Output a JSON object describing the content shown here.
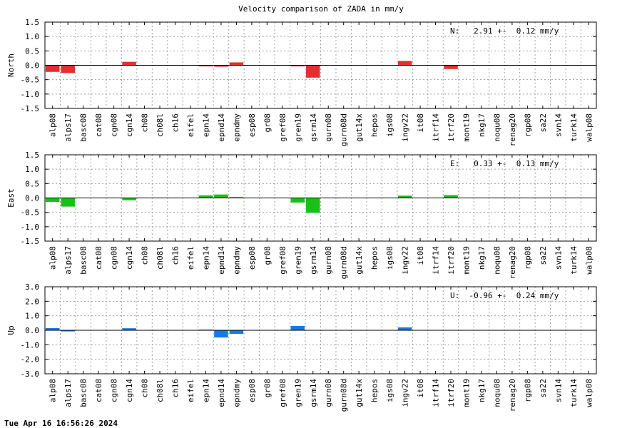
{
  "title": "Velocity comparison of ZADA in mm/y",
  "footer": "Tue Apr 16 16:56:26 2024",
  "colors": {
    "north": "#e03030",
    "east": "#18c018",
    "up": "#1878e8"
  },
  "chart_data": [
    {
      "type": "bar",
      "ylabel": "North",
      "ylim": [
        -1.5,
        1.5
      ],
      "yticks": [
        "1.5",
        "1.0",
        "0.5",
        "0.0",
        "-0.5",
        "-1.0",
        "-1.5"
      ],
      "grid": true,
      "annotation": "N:   2.91 +-  0.12 mm/y",
      "categories": [
        "alp08",
        "alps17",
        "basc08",
        "cat08",
        "cgn08",
        "cgn14",
        "ch08",
        "ch08l",
        "ch16",
        "eifel",
        "epn14",
        "epnd14",
        "epndmy",
        "esp08",
        "gr08",
        "gref08",
        "gren19",
        "gsrm14",
        "gurn08",
        "gurn08d",
        "gut14x",
        "hepos",
        "igs08",
        "ingv22",
        "it08",
        "itrf14",
        "itrf20",
        "mont19",
        "nkg17",
        "noqu08",
        "renag20",
        "rgp08",
        "sa22",
        "svn14",
        "turk14",
        "walp08"
      ],
      "values": [
        -0.23,
        -0.27,
        0,
        0,
        0,
        0.12,
        0,
        0,
        0,
        0,
        -0.04,
        -0.05,
        0.1,
        0,
        0,
        0,
        -0.04,
        -0.43,
        0,
        0,
        0,
        0,
        0,
        0.15,
        0,
        0,
        -0.13,
        0,
        0,
        0,
        0,
        0,
        0,
        0,
        0,
        0
      ]
    },
    {
      "type": "bar",
      "ylabel": "East",
      "ylim": [
        -1.5,
        1.5
      ],
      "yticks": [
        "1.5",
        "1.0",
        "0.5",
        "0.0",
        "-0.5",
        "-1.0",
        "-1.5"
      ],
      "grid": true,
      "annotation": "E:   0.33 +-  0.13 mm/y",
      "categories": [
        "alp08",
        "alps17",
        "basc08",
        "cat08",
        "cgn08",
        "cgn14",
        "ch08",
        "ch08l",
        "ch16",
        "eifel",
        "epn14",
        "epnd14",
        "epndmy",
        "esp08",
        "gr08",
        "gref08",
        "gren19",
        "gsrm14",
        "gurn08",
        "gurn08d",
        "gut14x",
        "hepos",
        "igs08",
        "ingv22",
        "it08",
        "itrf14",
        "itrf20",
        "mont19",
        "nkg17",
        "noqu08",
        "renag20",
        "rgp08",
        "sa22",
        "svn14",
        "turk14",
        "walp08"
      ],
      "values": [
        -0.14,
        -0.3,
        0,
        0,
        0,
        -0.08,
        0,
        0,
        0,
        0,
        0.09,
        0.12,
        0.03,
        0,
        0,
        0,
        -0.16,
        -0.52,
        0,
        0,
        0,
        0,
        0,
        0.08,
        0,
        0,
        0.1,
        0,
        0,
        0,
        0,
        0,
        0,
        0,
        0,
        0
      ]
    },
    {
      "type": "bar",
      "ylabel": "Up",
      "ylim": [
        -3.0,
        3.0
      ],
      "yticks": [
        "3.0",
        "2.0",
        "1.0",
        "0.0",
        "-1.0",
        "-2.0",
        "-3.0"
      ],
      "grid": true,
      "annotation": "U:  -0.96 +-  0.24 mm/y",
      "categories": [
        "alp08",
        "alps17",
        "basc08",
        "cat08",
        "cgn08",
        "cgn14",
        "ch08",
        "ch08l",
        "ch16",
        "eifel",
        "epn14",
        "epnd14",
        "epndmy",
        "esp08",
        "gr08",
        "gref08",
        "gren19",
        "gsrm14",
        "gurn08",
        "gurn08d",
        "gut14x",
        "hepos",
        "igs08",
        "ingv22",
        "it08",
        "itrf14",
        "itrf20",
        "mont19",
        "nkg17",
        "noqu08",
        "renag20",
        "rgp08",
        "sa22",
        "svn14",
        "turk14",
        "walp08"
      ],
      "values": [
        0.15,
        -0.08,
        0,
        0,
        0,
        0.14,
        0,
        0,
        0,
        0,
        0.05,
        -0.5,
        -0.25,
        0,
        0,
        0,
        0.3,
        0,
        0,
        0,
        0,
        0,
        0,
        0.2,
        0,
        0,
        0,
        0,
        0,
        0,
        0,
        0,
        0,
        0,
        0,
        0
      ]
    }
  ]
}
